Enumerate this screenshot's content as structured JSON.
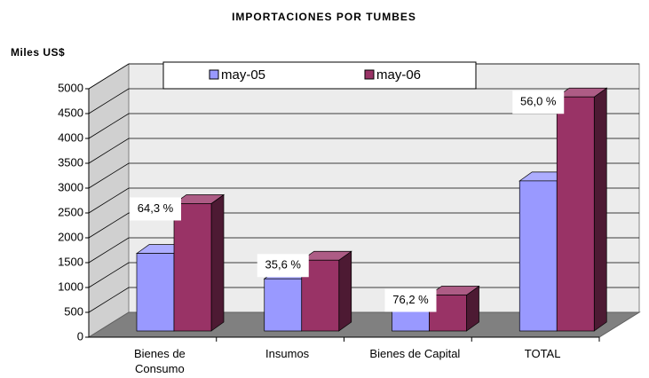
{
  "chart_data": {
    "type": "bar3d",
    "title": "IMPORTACIONES POR TUMBES",
    "y_label": "Miles US$",
    "categories": [
      "Bienes de Consumo",
      "Insumos",
      "Bienes de Capital",
      "TOTAL"
    ],
    "series": [
      {
        "name": "may-05",
        "color": "#9999ff",
        "values": [
          1560,
          1050,
          410,
          3020
        ]
      },
      {
        "name": "may-06",
        "color": "#993366",
        "values": [
          2563,
          1424,
          723,
          4710
        ]
      }
    ],
    "annotations": [
      "64,3 %",
      "35,6 %",
      "76,2 %",
      "56,0 %"
    ],
    "ylim": [
      0,
      5000
    ],
    "yticks": [
      0,
      500,
      1000,
      1500,
      2000,
      2500,
      3000,
      3500,
      4000,
      4500,
      5000
    ],
    "grid": true
  }
}
